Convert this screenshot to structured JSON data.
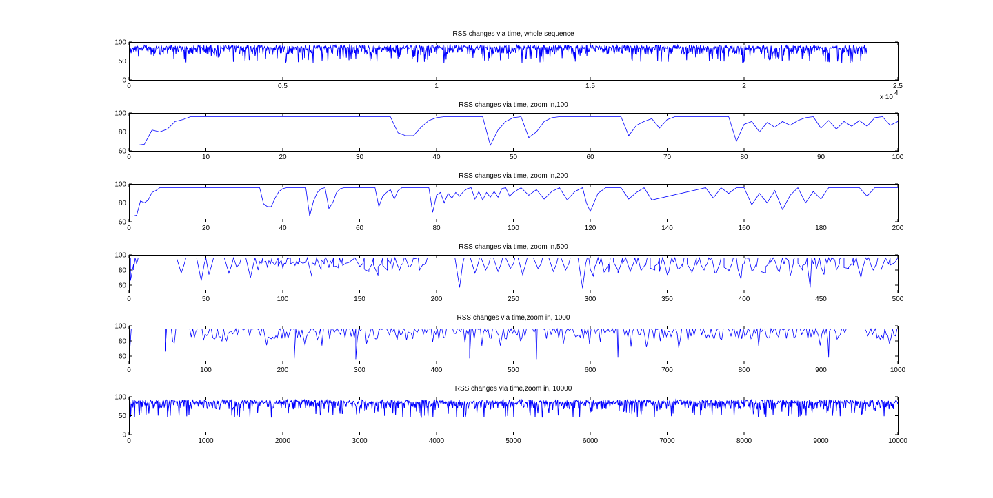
{
  "window_title": "",
  "chart_data": [
    {
      "type": "line",
      "title": "RSS changes via time, whole sequence",
      "xlabel": "",
      "ylabel": "",
      "xlim": [
        0,
        2.5
      ],
      "xlim_raw": [
        0,
        25000
      ],
      "ylim": [
        0,
        100
      ],
      "xticks": [
        "0",
        "0.5",
        "1",
        "1.5",
        "2",
        "2.5"
      ],
      "yticks": [
        "0",
        "50",
        "100"
      ],
      "x_multiplier_label": "x 10",
      "x_multiplier_exponent": "4",
      "grid": false,
      "series": [
        {
          "color": "#0000ff",
          "dense": true,
          "x_range": [
            0,
            24000
          ],
          "y_range": [
            45,
            92
          ],
          "x": [
            0,
            1000,
            2000,
            3000,
            4000,
            5000,
            6000,
            7000,
            8000,
            9000,
            10000,
            11000,
            12000,
            13000,
            14000,
            15000,
            16000,
            17000,
            18000,
            19000,
            20000,
            21000,
            22000,
            23000,
            24000
          ],
          "y_max": [
            92,
            92,
            92,
            92,
            92,
            92,
            92,
            92,
            92,
            92,
            92,
            92,
            92,
            92,
            92,
            92,
            92,
            92,
            92,
            92,
            92,
            92,
            92,
            92,
            92
          ],
          "y_min": [
            55,
            48,
            52,
            50,
            54,
            49,
            51,
            53,
            50,
            47,
            52,
            50,
            54,
            48,
            51,
            53,
            50,
            49,
            52,
            50,
            51,
            49,
            53,
            45,
            52
          ]
        }
      ]
    },
    {
      "type": "line",
      "title": "RSS changes via time, zoom in,100",
      "xlabel": "",
      "ylabel": "",
      "xlim": [
        0,
        100
      ],
      "ylim": [
        60,
        100
      ],
      "xticks": [
        "0",
        "10",
        "20",
        "30",
        "40",
        "50",
        "60",
        "70",
        "80",
        "90",
        "100"
      ],
      "yticks": [
        "60",
        "80",
        "100"
      ],
      "grid": false,
      "series": [
        {
          "color": "#0000ff",
          "x": [
            1,
            2,
            3,
            4,
            5,
            6,
            7,
            8,
            34,
            35,
            36,
            37,
            38,
            39,
            40,
            41,
            46,
            47,
            48,
            49,
            50,
            51,
            52,
            53,
            54,
            55,
            56,
            64,
            65,
            66,
            67,
            68,
            69,
            70,
            71,
            78,
            79,
            80,
            81,
            82,
            83,
            84,
            85,
            86,
            87,
            88,
            89,
            90,
            91,
            92,
            93,
            94,
            95,
            96,
            97,
            98,
            99,
            100
          ],
          "y": [
            66,
            67,
            82,
            80,
            83,
            91,
            93,
            96,
            96,
            79,
            76,
            76,
            85,
            92,
            95,
            96,
            96,
            66,
            82,
            91,
            95,
            96,
            74,
            80,
            91,
            95,
            96,
            96,
            76,
            87,
            91,
            94,
            84,
            93,
            96,
            96,
            70,
            88,
            91,
            80,
            90,
            85,
            91,
            87,
            92,
            95,
            96,
            84,
            92,
            83,
            91,
            86,
            92,
            86,
            95,
            96,
            87,
            91
          ]
        }
      ]
    },
    {
      "type": "line",
      "title": "RSS changes via time, zoom in,200",
      "xlabel": "",
      "ylabel": "",
      "xlim": [
        0,
        200
      ],
      "ylim": [
        60,
        100
      ],
      "xticks": [
        "0",
        "20",
        "40",
        "60",
        "80",
        "100",
        "120",
        "140",
        "160",
        "180",
        "200"
      ],
      "yticks": [
        "60",
        "80",
        "100"
      ],
      "grid": false,
      "series": [
        {
          "color": "#0000ff",
          "x": [
            1,
            2,
            3,
            4,
            5,
            6,
            7,
            8,
            34,
            35,
            36,
            37,
            38,
            39,
            40,
            41,
            46,
            47,
            48,
            49,
            50,
            51,
            52,
            53,
            54,
            55,
            56,
            64,
            65,
            66,
            67,
            68,
            69,
            70,
            71,
            78,
            79,
            80,
            81,
            82,
            83,
            84,
            85,
            86,
            87,
            88,
            89,
            90,
            91,
            92,
            93,
            94,
            95,
            96,
            97,
            98,
            99,
            100,
            102,
            104,
            106,
            108,
            110,
            112,
            114,
            116,
            118,
            119,
            120,
            122,
            124,
            128,
            130,
            132,
            134,
            136,
            150,
            152,
            154,
            156,
            158,
            160,
            162,
            164,
            166,
            168,
            170,
            172,
            174,
            176,
            178,
            180,
            182,
            190,
            192,
            194,
            200
          ],
          "y": [
            66,
            67,
            82,
            80,
            83,
            91,
            93,
            96,
            96,
            79,
            76,
            76,
            85,
            92,
            95,
            96,
            96,
            66,
            82,
            91,
            95,
            96,
            74,
            80,
            91,
            95,
            96,
            96,
            76,
            87,
            91,
            94,
            84,
            93,
            96,
            96,
            70,
            88,
            91,
            80,
            90,
            85,
            91,
            87,
            92,
            95,
            96,
            84,
            92,
            83,
            91,
            86,
            92,
            86,
            95,
            96,
            87,
            91,
            96,
            88,
            94,
            84,
            92,
            96,
            83,
            92,
            96,
            80,
            71,
            90,
            96,
            96,
            84,
            91,
            96,
            83,
            96,
            85,
            96,
            90,
            96,
            96,
            78,
            90,
            80,
            93,
            73,
            88,
            96,
            80,
            92,
            84,
            96,
            96,
            87,
            96,
            96
          ]
        }
      ]
    },
    {
      "type": "line",
      "title": "RSS changes via time, zoom in,500",
      "xlabel": "",
      "ylabel": "",
      "xlim": [
        0,
        500
      ],
      "ylim": [
        50,
        100
      ],
      "xticks": [
        "0",
        "50",
        "100",
        "150",
        "200",
        "250",
        "300",
        "350",
        "400",
        "450",
        "500"
      ],
      "yticks": [
        "60",
        "80",
        "100"
      ],
      "grid": false,
      "series": [
        {
          "color": "#0000ff",
          "dense": true,
          "x_range": [
            1,
            500
          ],
          "y_range": [
            55,
            96
          ],
          "dips": [
            [
              1,
              66
            ],
            [
              3,
              80
            ],
            [
              34,
              76
            ],
            [
              47,
              66
            ],
            [
              52,
              74
            ],
            [
              65,
              76
            ],
            [
              70,
              84
            ],
            [
              79,
              70
            ],
            [
              84,
              80
            ],
            [
              90,
              84
            ],
            [
              100,
              83
            ],
            [
              108,
              86
            ],
            [
              119,
              71
            ],
            [
              125,
              80
            ],
            [
              130,
              83
            ],
            [
              136,
              83
            ],
            [
              150,
              85
            ],
            [
              156,
              78
            ],
            [
              162,
              73
            ],
            [
              168,
              80
            ],
            [
              176,
              80
            ],
            [
              182,
              84
            ],
            [
              191,
              87
            ],
            [
              215,
              57
            ],
            [
              225,
              76
            ],
            [
              232,
              80
            ],
            [
              240,
              78
            ],
            [
              248,
              82
            ],
            [
              256,
              74
            ],
            [
              266,
              82
            ],
            [
              276,
              78
            ],
            [
              284,
              80
            ],
            [
              295,
              56
            ],
            [
              302,
              72
            ],
            [
              310,
              80
            ],
            [
              318,
              80
            ],
            [
              326,
              78
            ],
            [
              334,
              82
            ],
            [
              342,
              80
            ],
            [
              350,
              74
            ],
            [
              358,
              82
            ],
            [
              366,
              78
            ],
            [
              374,
              80
            ],
            [
              382,
              76
            ],
            [
              390,
              80
            ],
            [
              398,
              68
            ],
            [
              406,
              80
            ],
            [
              414,
              76
            ],
            [
              422,
              80
            ],
            [
              430,
              72
            ],
            [
              438,
              80
            ],
            [
              443,
              57
            ],
            [
              452,
              74
            ],
            [
              460,
              80
            ],
            [
              468,
              82
            ],
            [
              476,
              70
            ],
            [
              484,
              80
            ],
            [
              492,
              96
            ]
          ]
        }
      ]
    },
    {
      "type": "line",
      "title": "RSS changes via time,zoom in, 1000",
      "xlabel": "",
      "ylabel": "",
      "xlim": [
        0,
        1000
      ],
      "ylim": [
        50,
        100
      ],
      "xticks": [
        "0",
        "100",
        "200",
        "300",
        "400",
        "500",
        "600",
        "700",
        "800",
        "900",
        "1000"
      ],
      "yticks": [
        "60",
        "80",
        "100"
      ],
      "grid": false,
      "series": [
        {
          "color": "#0000ff",
          "dense": true,
          "x_range": [
            1,
            1000
          ],
          "y_range": [
            55,
            96
          ],
          "notable_minima": [
            [
              1,
              66
            ],
            [
              47,
              66
            ],
            [
              215,
              57
            ],
            [
              295,
              56
            ],
            [
              443,
              57
            ],
            [
              530,
              56
            ],
            [
              636,
              58
            ],
            [
              910,
              58
            ]
          ]
        }
      ]
    },
    {
      "type": "line",
      "title": "RSS changes via time,zoom in, 10000",
      "xlabel": "",
      "ylabel": "",
      "xlim": [
        0,
        10000
      ],
      "ylim": [
        0,
        100
      ],
      "xticks": [
        "0",
        "1000",
        "2000",
        "3000",
        "4000",
        "5000",
        "6000",
        "7000",
        "8000",
        "9000",
        "10000"
      ],
      "yticks": [
        "0",
        "50",
        "100"
      ],
      "grid": false,
      "series": [
        {
          "color": "#0000ff",
          "dense": true,
          "x_range": [
            1,
            10000
          ],
          "y_range": [
            45,
            92
          ],
          "x": [
            0,
            1000,
            2000,
            3000,
            4000,
            5000,
            6000,
            7000,
            8000,
            9000,
            10000
          ],
          "y_max": [
            92,
            92,
            92,
            92,
            92,
            92,
            92,
            92,
            92,
            92,
            92
          ],
          "y_min": [
            55,
            50,
            52,
            48,
            45,
            52,
            50,
            51,
            49,
            52,
            50
          ]
        }
      ]
    }
  ]
}
